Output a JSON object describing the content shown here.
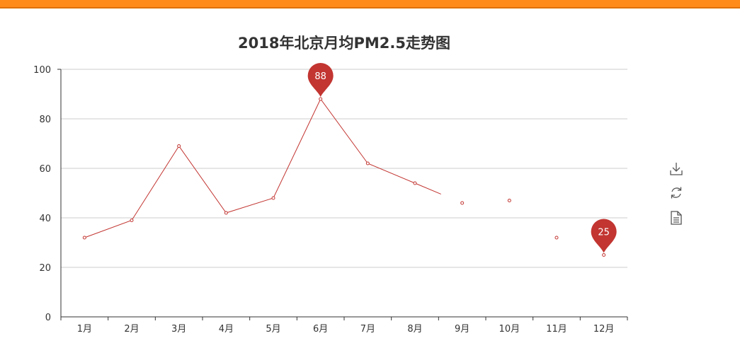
{
  "chart_data": {
    "type": "line",
    "title": "2018年北京月均PM2.5走势图",
    "categories": [
      "1月",
      "2月",
      "3月",
      "4月",
      "5月",
      "6月",
      "7月",
      "8月",
      "9月",
      "10月",
      "11月",
      "12月"
    ],
    "series": [
      {
        "values": [
          32,
          39,
          69,
          42,
          48,
          88,
          62,
          54,
          46,
          47,
          32,
          25
        ]
      }
    ],
    "line_break_after_index": 7,
    "ylim": [
      0,
      100
    ],
    "yticks": [
      0,
      20,
      40,
      60,
      80,
      100
    ],
    "grid": true,
    "mark_points": [
      {
        "type": "max",
        "index": 5,
        "value": "88"
      },
      {
        "type": "min",
        "index": 11,
        "value": "25"
      }
    ],
    "color": "#c23531"
  },
  "toolbox": {
    "icons": [
      "download-icon",
      "refresh-icon",
      "data-view-icon"
    ]
  },
  "colors": {
    "top_bar": "#ff8c1a",
    "series": "#c23531"
  }
}
